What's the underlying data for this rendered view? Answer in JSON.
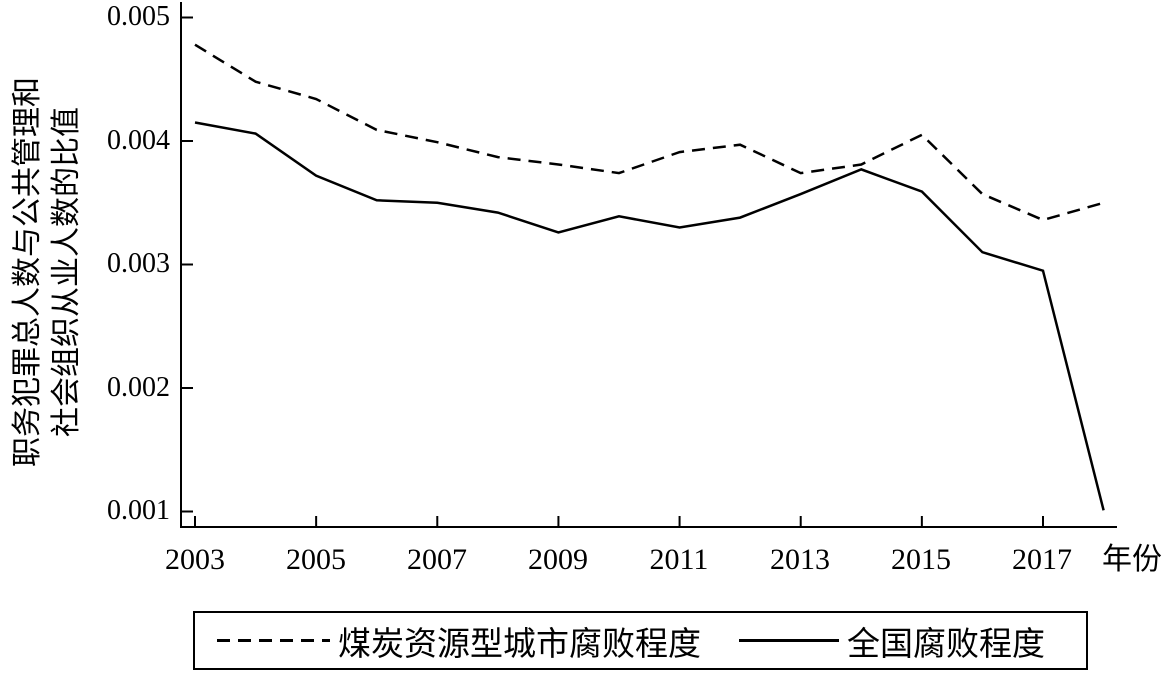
{
  "chart_data": {
    "type": "line",
    "title": "",
    "xlabel": "年份",
    "ylabel_lines": [
      "职务犯罪总人数与公共管理和",
      "社会组织从业人数的比值"
    ],
    "x": [
      2003,
      2004,
      2005,
      2006,
      2007,
      2008,
      2009,
      2010,
      2011,
      2012,
      2013,
      2014,
      2015,
      2016,
      2017,
      2018
    ],
    "series": [
      {
        "name": "煤炭资源型城市腐败程度",
        "style": "dashed",
        "values": [
          0.00478,
          0.00448,
          0.00434,
          0.00409,
          0.00399,
          0.00387,
          0.00381,
          0.00374,
          0.00391,
          0.00397,
          0.00374,
          0.00381,
          0.00405,
          0.00357,
          0.00336,
          0.0035
        ]
      },
      {
        "name": "全国腐败程度",
        "style": "solid",
        "values": [
          0.00415,
          0.00406,
          0.00372,
          0.00352,
          0.0035,
          0.00342,
          0.00326,
          0.00339,
          0.0033,
          0.00338,
          0.00357,
          0.00377,
          0.00359,
          0.0031,
          0.00295,
          0.00101
        ]
      }
    ],
    "x_tick_labels": [
      "2003",
      "2005",
      "2007",
      "2009",
      "2011",
      "2013",
      "2015",
      "2017"
    ],
    "x_tick_years": [
      2003,
      2005,
      2007,
      2009,
      2011,
      2013,
      2015,
      2017
    ],
    "y_tick_labels": [
      "0.005",
      "0.004",
      "0.003",
      "0.002",
      "0.001"
    ],
    "y_ticks": [
      0.001,
      0.002,
      0.003,
      0.004,
      0.005
    ],
    "ylim": [
      0.001,
      0.005
    ],
    "xlim": [
      2003,
      2018
    ],
    "grid": false,
    "legend_position": "bottom",
    "line_color": "#000000",
    "background": "#ffffff"
  }
}
